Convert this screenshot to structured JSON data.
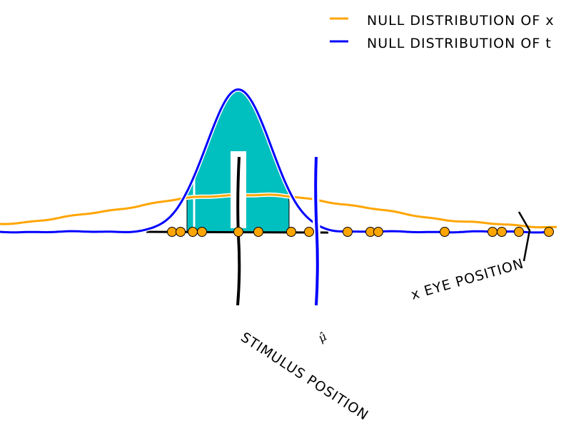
{
  "legend": {
    "items": [
      {
        "label": "NULL DISTRIBUTION OF x",
        "color": "#ffa500"
      },
      {
        "label": "NULL DISTRIBUTION OF t",
        "color": "#0000ff"
      }
    ]
  },
  "annotations": {
    "eye_position": "x EYE POSITION",
    "stimulus_position": "STIMULUS POSITION",
    "mu_hat": "μ̂"
  },
  "colors": {
    "null_x": "#ffa500",
    "null_t": "#0000ff",
    "fill": "#00bfbf",
    "samples": "#ffa500",
    "axis": "#000000"
  }
}
